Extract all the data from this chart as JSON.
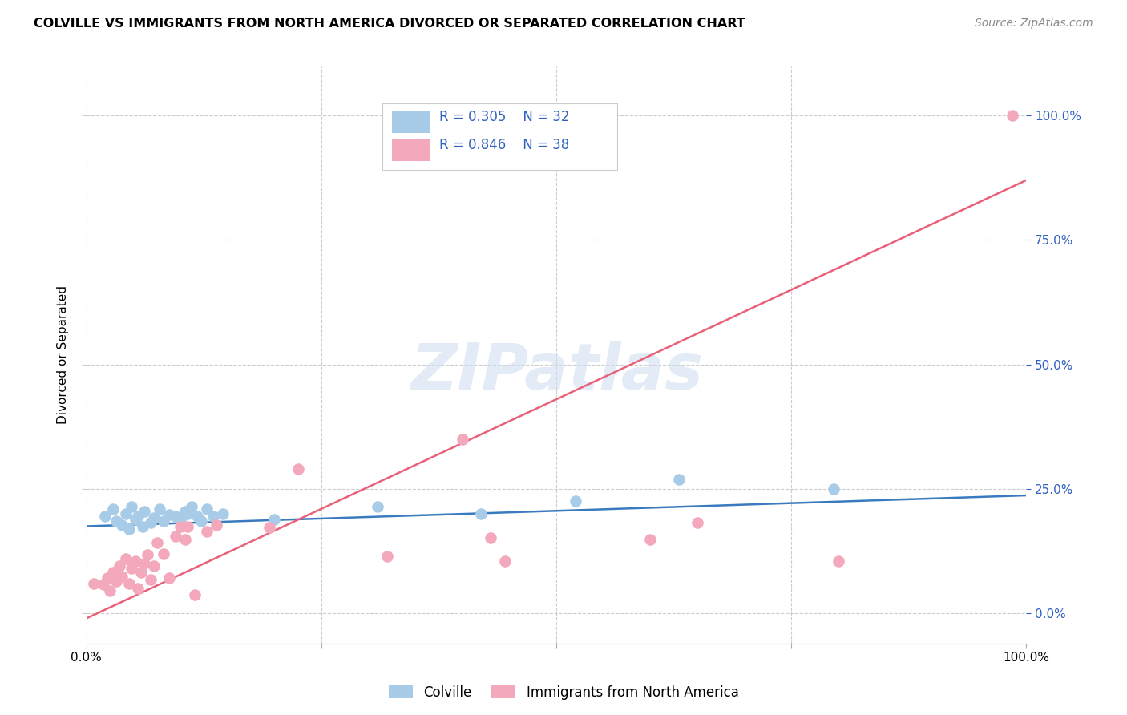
{
  "title": "COLVILLE VS IMMIGRANTS FROM NORTH AMERICA DIVORCED OR SEPARATED CORRELATION CHART",
  "source": "Source: ZipAtlas.com",
  "ylabel": "Divorced or Separated",
  "xlim": [
    0.0,
    1.0
  ],
  "ylim": [
    -0.06,
    1.1
  ],
  "xticks": [
    0.0,
    0.25,
    0.5,
    0.75,
    1.0
  ],
  "yticks": [
    0.0,
    0.25,
    0.5,
    0.75,
    1.0
  ],
  "xtick_labels_show": [
    "0.0%",
    "",
    "",
    "",
    "100.0%"
  ],
  "right_ytick_labels": [
    "0.0%",
    "25.0%",
    "50.0%",
    "75.0%",
    "100.0%"
  ],
  "blue_color": "#a8cce8",
  "pink_color": "#f4a8bc",
  "blue_line_color": "#3a7bbf",
  "pink_line_color": "#e8607a",
  "legend_R_blue": "R = 0.305",
  "legend_N_blue": "N = 32",
  "legend_R_pink": "R = 0.846",
  "legend_N_pink": "N = 38",
  "legend_text_color": "#3060c0",
  "watermark": "ZIPatlas",
  "blue_points_x": [
    0.02,
    0.028,
    0.032,
    0.038,
    0.042,
    0.045,
    0.048,
    0.052,
    0.055,
    0.06,
    0.062,
    0.068,
    0.072,
    0.078,
    0.082,
    0.088,
    0.095,
    0.1,
    0.105,
    0.108,
    0.112,
    0.118,
    0.122,
    0.128,
    0.135,
    0.145,
    0.2,
    0.31,
    0.42,
    0.52,
    0.63,
    0.795
  ],
  "blue_points_y": [
    0.195,
    0.21,
    0.185,
    0.178,
    0.2,
    0.17,
    0.215,
    0.188,
    0.195,
    0.175,
    0.205,
    0.182,
    0.192,
    0.21,
    0.185,
    0.198,
    0.195,
    0.188,
    0.205,
    0.2,
    0.215,
    0.195,
    0.185,
    0.21,
    0.195,
    0.2,
    0.188,
    0.215,
    0.2,
    0.225,
    0.27,
    0.25
  ],
  "pink_points_x": [
    0.008,
    0.018,
    0.022,
    0.025,
    0.028,
    0.032,
    0.035,
    0.038,
    0.042,
    0.045,
    0.048,
    0.052,
    0.055,
    0.058,
    0.062,
    0.065,
    0.068,
    0.072,
    0.075,
    0.082,
    0.088,
    0.095,
    0.1,
    0.105,
    0.108,
    0.115,
    0.128,
    0.138,
    0.195,
    0.225,
    0.32,
    0.4,
    0.43,
    0.445,
    0.6,
    0.65,
    0.8,
    0.985
  ],
  "pink_points_y": [
    0.06,
    0.058,
    0.072,
    0.045,
    0.082,
    0.065,
    0.095,
    0.075,
    0.11,
    0.06,
    0.09,
    0.105,
    0.05,
    0.082,
    0.1,
    0.118,
    0.068,
    0.095,
    0.142,
    0.12,
    0.072,
    0.155,
    0.175,
    0.148,
    0.175,
    0.038,
    0.165,
    0.178,
    0.172,
    0.29,
    0.115,
    0.35,
    0.152,
    0.105,
    0.148,
    0.182,
    0.105,
    1.0
  ],
  "blue_slope": 0.062,
  "blue_intercept": 0.175,
  "pink_slope": 0.88,
  "pink_intercept": -0.01
}
